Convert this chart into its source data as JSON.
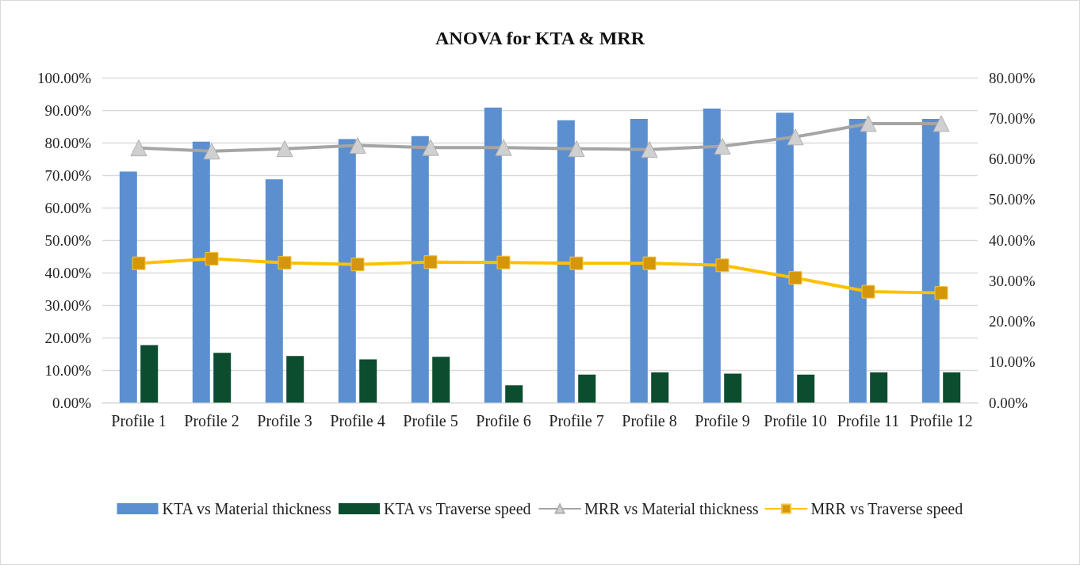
{
  "chart_data": {
    "type": "bar",
    "title": "ANOVA for KTA & MRR",
    "categories": [
      "Profile 1",
      "Profile 2",
      "Profile 3",
      "Profile 4",
      "Profile 5",
      "Profile 6",
      "Profile 7",
      "Profile 8",
      "Profile 9",
      "Profile 10",
      "Profile 11",
      "Profile 12"
    ],
    "series": [
      {
        "name": "KTA vs Material thickness",
        "color": "#5b8fd0",
        "values": [
          71.1,
          80.3,
          68.7,
          81.1,
          82.0,
          90.8,
          86.9,
          87.3,
          90.5,
          89.2,
          87.3,
          87.3
        ]
      },
      {
        "name": "KTA vs Traverse speed",
        "color": "#0b4d2e",
        "values": [
          17.7,
          15.3,
          14.3,
          13.3,
          14.1,
          5.3,
          8.6,
          9.3,
          8.9,
          8.6,
          9.3,
          9.3
        ]
      },
      {
        "name": "MRR vs Material thickness",
        "type": "line",
        "axis": "y2",
        "marker": "triangle",
        "color": "#a5a5a5",
        "values": [
          62.7,
          61.9,
          62.5,
          63.3,
          62.8,
          62.8,
          62.5,
          62.3,
          63.1,
          65.4,
          68.7,
          68.7
        ]
      },
      {
        "name": "MRR vs Traverse speed",
        "type": "line",
        "axis": "y2",
        "marker": "square",
        "color": "#ffc000",
        "values": [
          34.3,
          35.4,
          34.4,
          34.0,
          34.6,
          34.5,
          34.3,
          34.3,
          33.8,
          30.7,
          27.3,
          27.0
        ]
      }
    ],
    "ylim": [
      0,
      100
    ],
    "yticks": [
      {
        "value": 0,
        "label": "0.00%"
      },
      {
        "value": 10,
        "label": "10.00%"
      },
      {
        "value": 20,
        "label": "20.00%"
      },
      {
        "value": 30,
        "label": "30.00%"
      },
      {
        "value": 40,
        "label": "40.00%"
      },
      {
        "value": 50,
        "label": "50.00%"
      },
      {
        "value": 60,
        "label": "60.00%"
      },
      {
        "value": 70,
        "label": "70.00%"
      },
      {
        "value": 80,
        "label": "80.00%"
      },
      {
        "value": 90,
        "label": "90.00%"
      },
      {
        "value": 100,
        "label": "100.00%"
      }
    ],
    "y2lim": [
      0,
      80
    ],
    "y2ticks": [
      {
        "value": 0,
        "label": "0.00%"
      },
      {
        "value": 10,
        "label": "10.00%"
      },
      {
        "value": 20,
        "label": "20.00%"
      },
      {
        "value": 30,
        "label": "30.00%"
      },
      {
        "value": 40,
        "label": "40.00%"
      },
      {
        "value": 50,
        "label": "50.00%"
      },
      {
        "value": 60,
        "label": "60.00%"
      },
      {
        "value": 70,
        "label": "70.00%"
      },
      {
        "value": 80,
        "label": "80.00%"
      }
    ],
    "grid": "y",
    "legend": "bottom"
  }
}
